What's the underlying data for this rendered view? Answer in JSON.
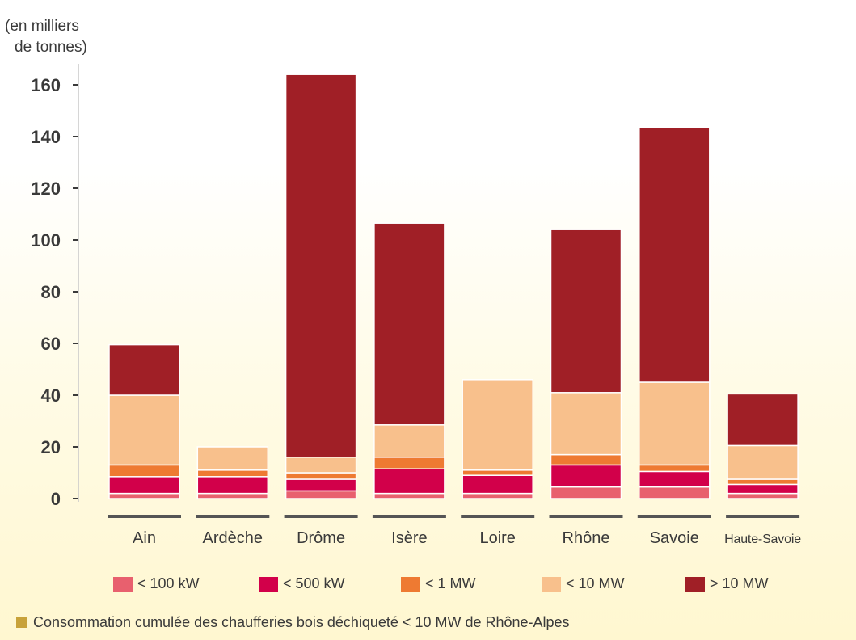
{
  "chart_data": {
    "type": "bar",
    "stacked": true,
    "ylabel": "(en milliers de tonnes)",
    "ylabel_lines": [
      "(en milliers",
      "de tonnes)"
    ],
    "ylim": [
      0,
      165
    ],
    "yticks": [
      0,
      20,
      40,
      60,
      80,
      100,
      120,
      140,
      160
    ],
    "grid": false,
    "legend_position": "bottom",
    "categories": [
      "Ain",
      "Ardèche",
      "Drôme",
      "Isère",
      "Loire",
      "Rhône",
      "Savoie",
      "Haute-Savoie"
    ],
    "series": [
      {
        "name": "< 100 kW",
        "color": "#e8606e",
        "values": [
          2,
          2,
          3,
          2,
          2,
          4.5,
          4.5,
          2
        ]
      },
      {
        "name": "< 500 kW",
        "color": "#d2004a",
        "values": [
          6.5,
          6.5,
          4.5,
          9.5,
          7,
          8.5,
          6,
          3.5
        ]
      },
      {
        "name": "< 1 MW",
        "color": "#ee7a32",
        "values": [
          4.5,
          2.5,
          2.5,
          4.5,
          2,
          4,
          2.5,
          2
        ]
      },
      {
        "name": "< 10 MW",
        "color": "#f8c08c",
        "values": [
          27,
          9,
          6,
          12.5,
          35,
          24,
          32,
          13
        ]
      },
      {
        "name": "> 10 MW",
        "color": "#a01f26",
        "values": [
          19.5,
          0,
          148,
          78,
          0,
          63,
          98.5,
          20
        ]
      }
    ]
  },
  "caption": "Consommation cumulée des chaufferies bois déchiqueté < 10 MW de Rhône-Alpes",
  "colors": {
    "axis": "#c8c8c8",
    "text": "#3a3a3a",
    "caption_square": "#c8a23a",
    "baseline": "#555555"
  }
}
